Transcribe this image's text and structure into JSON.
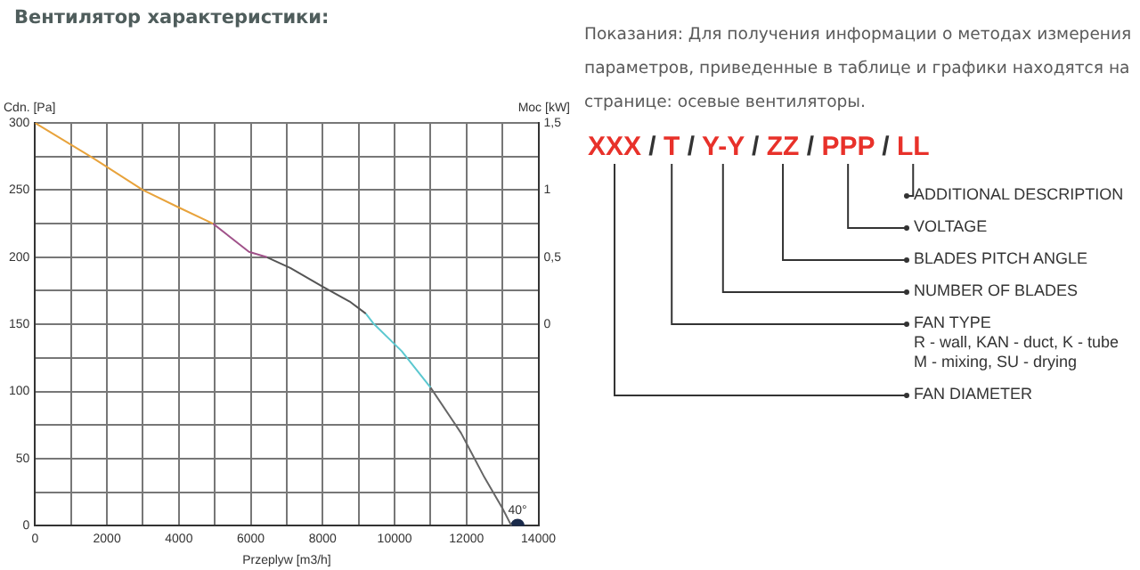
{
  "chart_data": {
    "type": "line",
    "title": "Вентилятор характеристики:",
    "xlabel": "Przeplyw [m3/h]",
    "ylabel": "Cdn. [Pa]",
    "y2label": "Moc [kW]",
    "xlim": [
      0,
      14000
    ],
    "xticks": [
      0,
      {
        "value": 1000,
        "label": null
      },
      2000,
      {
        "value": 3000,
        "label": null
      },
      4000,
      {
        "value": 5000,
        "label": null
      },
      6000,
      {
        "value": 7000,
        "label": null
      },
      8000,
      {
        "value": 9000,
        "label": null
      },
      10000,
      {
        "value": 11000,
        "label": null
      },
      12000,
      {
        "value": 13000,
        "label": null
      },
      14000
    ],
    "ylim": [
      0,
      300
    ],
    "yticks": [
      0,
      {
        "value": 25,
        "label": null
      },
      50,
      {
        "value": 75,
        "label": null
      },
      100,
      {
        "value": 125,
        "label": null
      },
      150,
      {
        "value": 175,
        "label": null
      },
      200,
      {
        "value": 225,
        "label": null
      },
      250,
      {
        "value": 275,
        "label": null
      },
      300
    ],
    "y2lim": [
      -1.5,
      1.5
    ],
    "y2ticks": [
      0,
      {
        "value": 0.5,
        "label": "0,5"
      },
      1,
      {
        "value": 1.5,
        "label": "1,5"
      }
    ],
    "grid": true,
    "legend": false,
    "marker": "none",
    "line_style": "solid",
    "series": [
      {
        "color": "#e8a33c",
        "x": [
          0,
          1600,
          3000,
          4000,
          4950
        ],
        "values": [
          300,
          274,
          250,
          237,
          225
        ]
      },
      {
        "color": "#a0528a",
        "x": [
          4950,
          5950,
          6450
        ],
        "values": [
          225,
          204,
          200
        ]
      },
      {
        "color": "#555555",
        "x": [
          6450,
          7100,
          8000,
          8750,
          9200
        ],
        "values": [
          200,
          192,
          178,
          167,
          158
        ]
      },
      {
        "color": "#5bc8d0",
        "x": [
          9200,
          9400,
          10200,
          11000
        ],
        "values": [
          158,
          151,
          130,
          103
        ]
      },
      {
        "color": "#666666",
        "x": [
          11000,
          11850,
          12500,
          13000,
          13250
        ],
        "values": [
          103,
          69,
          36,
          13,
          0
        ]
      },
      {
        "type": "scatter",
        "marker": "circle",
        "color": "#1a2a4a",
        "x": [
          13420
        ],
        "values": [
          0
        ]
      }
    ],
    "annotations": [
      {
        "text": "40°",
        "x": 13420,
        "y": 0
      },
      "Показания: Для получения информации о методах измерения параметров, приведенные в таблице и графики находятся на странице: осевые вентиляторы.",
      "XXX / T / Y-Y / ZZ / PPP / LL",
      "ADDITIONAL DESCRIPTION",
      "VOLTAGE",
      "BLADES PITCH ANGLE",
      "NUMBER OF BLADES",
      "FAN TYPE\nR - wall, KAN - duct, K - tube\nM - mixing, SU - drying",
      "FAN DIAMETER"
    ]
  }
}
